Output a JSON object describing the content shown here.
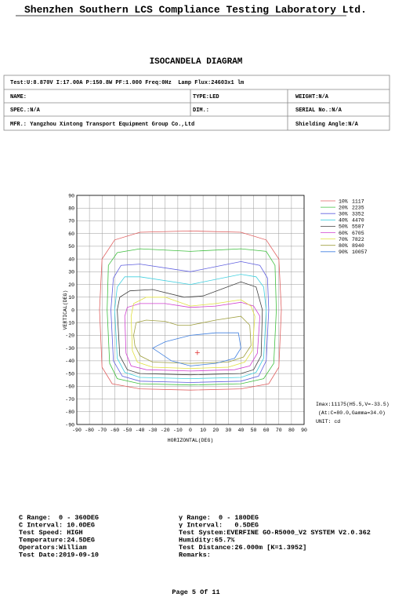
{
  "header": {
    "lab": "Shenzhen Southern LCS Compliance Testing Laboratory Ltd.",
    "title": "ISOCANDELA DIAGRAM"
  },
  "table": {
    "rows": [
      [
        "Test:U:8.870V I:17.00A P:150.8W PF:1.000 Freq:0Hz  Lamp Flux:24603x1 lm"
      ],
      [
        "NAME:",
        "TYPE:LED",
        "WEIGHT:N/A"
      ],
      [
        "SPEC.:N/A",
        "DIM.:",
        "SERIAL No.:N/A"
      ],
      [
        "MFR.: Yangzhou Xintong Transport Equipment Group Co.,Ltd",
        "Shielding Angle:N/A"
      ]
    ]
  },
  "chart_data": {
    "type": "contour",
    "xlabel": "HORIZONTAL(DEG)",
    "ylabel": "VERTICAL(DEG)",
    "xlim": [
      -90,
      90
    ],
    "ylim": [
      -90,
      90
    ],
    "xticks": [
      -90,
      -80,
      -70,
      -60,
      -50,
      -40,
      -30,
      -20,
      -10,
      0,
      10,
      20,
      30,
      40,
      50,
      60,
      70,
      80,
      90
    ],
    "yticks": [
      -90,
      -80,
      -70,
      -60,
      -50,
      -40,
      -30,
      -20,
      -10,
      0,
      10,
      20,
      30,
      40,
      50,
      60,
      70,
      80,
      90
    ],
    "grid": true,
    "series": [
      {
        "name": "10%",
        "level": 1117,
        "color": "#e06060",
        "x": [
          -72,
          -70,
          -60,
          -40,
          0,
          40,
          60,
          70,
          72,
          70,
          62,
          40,
          0,
          -40,
          -62,
          -70
        ],
        "y": [
          0,
          40,
          55,
          61,
          62,
          61,
          55,
          40,
          0,
          -45,
          -58,
          -62,
          -63,
          -62,
          -58,
          -45
        ]
      },
      {
        "name": "20%",
        "level": 2235,
        "color": "#40c040",
        "x": [
          -66,
          -65,
          -58,
          -40,
          0,
          40,
          60,
          67,
          68,
          66,
          58,
          40,
          0,
          -40,
          -58,
          -64
        ],
        "y": [
          0,
          35,
          45,
          48,
          46,
          48,
          46,
          35,
          0,
          -42,
          -54,
          -58,
          -59,
          -58,
          -54,
          -42
        ]
      },
      {
        "name": "30%",
        "level": 3352,
        "color": "#6060e0",
        "x": [
          -63,
          -61,
          -55,
          -40,
          0,
          40,
          55,
          61,
          62,
          60,
          54,
          40,
          0,
          -40,
          -54,
          -61
        ],
        "y": [
          0,
          25,
          35,
          36,
          30,
          38,
          35,
          25,
          0,
          -40,
          -52,
          -56,
          -57,
          -56,
          -52,
          -40
        ]
      },
      {
        "name": "40%",
        "level": 4470,
        "color": "#40d0e0",
        "x": [
          -60,
          -58,
          -52,
          -40,
          0,
          40,
          52,
          58,
          60,
          58,
          52,
          40,
          0,
          -40,
          -52,
          -58
        ],
        "y": [
          0,
          18,
          26,
          26,
          20,
          28,
          26,
          18,
          0,
          -38,
          -49,
          -53,
          -54,
          -53,
          -49,
          -38
        ]
      },
      {
        "name": "50%",
        "level": 5587,
        "color": "#404040",
        "x": [
          -58,
          -56,
          -48,
          -30,
          -5,
          10,
          40,
          52,
          57,
          56,
          50,
          40,
          0,
          -40,
          -50,
          -56
        ],
        "y": [
          0,
          10,
          15,
          16,
          10,
          11,
          22,
          18,
          0,
          -36,
          -47,
          -50,
          -51,
          -50,
          -47,
          -36
        ]
      },
      {
        "name": "60%",
        "level": 6705,
        "color": "#d040d0",
        "x": [
          -52,
          -50,
          -40,
          -20,
          0,
          20,
          40,
          50,
          55,
          53,
          47,
          35,
          0,
          -35,
          -47,
          -51
        ],
        "y": [
          -5,
          2,
          5,
          5,
          2,
          3,
          6,
          3,
          -5,
          -34,
          -44,
          -47,
          -48,
          -47,
          -44,
          -34
        ]
      },
      {
        "name": "70%",
        "level": 7822,
        "color": "#e0e040",
        "x": [
          -47,
          -45,
          -35,
          -20,
          0,
          20,
          40,
          48,
          51,
          49,
          43,
          30,
          0,
          -30,
          -42,
          -46
        ],
        "y": [
          -5,
          5,
          10,
          10,
          3,
          5,
          8,
          3,
          -5,
          -32,
          -41,
          -45,
          -46,
          -45,
          -41,
          -32
        ]
      },
      {
        "name": "80%",
        "level": 8940,
        "color": "#a0a040",
        "x": [
          -45,
          -43,
          -35,
          -20,
          -10,
          0,
          20,
          40,
          47,
          48,
          42,
          30,
          0,
          -30,
          -40,
          -44
        ],
        "y": [
          -20,
          -10,
          -8,
          -9,
          -12,
          -12,
          -8,
          -5,
          -12,
          -28,
          -37,
          -41,
          -42,
          -41,
          -36,
          -28
        ]
      },
      {
        "name": "90%",
        "level": 10057,
        "color": "#4080e0",
        "x": [
          -30,
          -20,
          0,
          20,
          38,
          40,
          35,
          20,
          0,
          -15
        ],
        "y": [
          -30,
          -25,
          -20,
          -18,
          -18,
          -30,
          -38,
          -42,
          -44,
          -40
        ]
      }
    ],
    "imax_point": {
      "x": 5.5,
      "y": -33.5,
      "color": "#e03030"
    },
    "annotations": [
      "Imax:11175(H5.5,V=-33.5)",
      "(At:C=80.0,Gamma=34.0)",
      "UNIT: cd"
    ]
  },
  "footer": {
    "left": [
      "C Range:  0 - 360DEG",
      "C Interval: 10.0DEG",
      "Test Speed: HIGH",
      "Temperature:24.5DEG",
      "Operators:William",
      "Test Date:2019-09-10"
    ],
    "right": [
      "γ Range:  0 - 180DEG",
      "γ Interval:   0.5DEG",
      "Test System:EVERFINE GO-R5000_V2 SYSTEM V2.0.362",
      "Humidity:65.7%",
      "Test Distance:26.000m [K=1.3952]",
      "Remarks:"
    ],
    "page": "Page 5 Of 11"
  }
}
